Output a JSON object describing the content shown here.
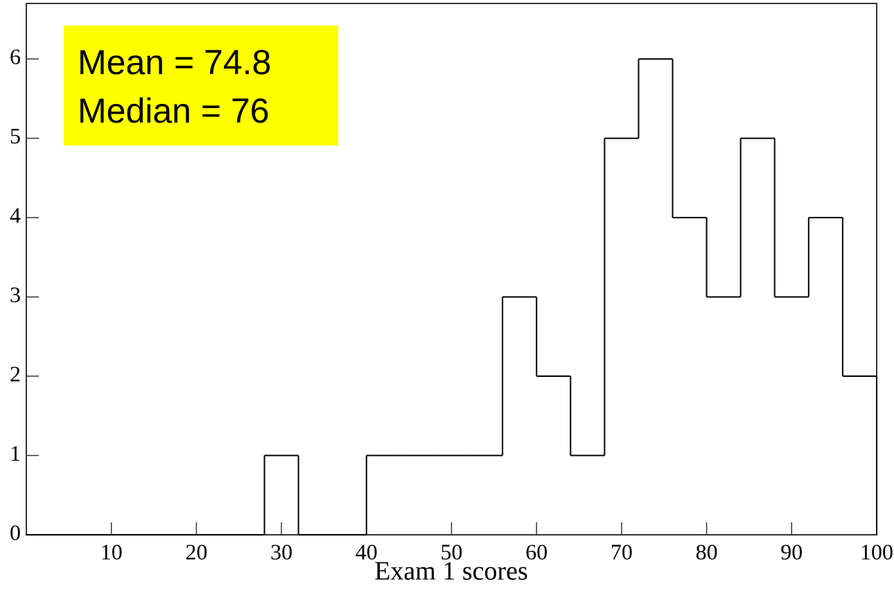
{
  "chart_data": {
    "type": "histogram",
    "bins": [
      0,
      4,
      8,
      12,
      16,
      20,
      24,
      28,
      32,
      36,
      40,
      44,
      48,
      52,
      56,
      60,
      64,
      68,
      72,
      76,
      80,
      84,
      88,
      92,
      96,
      100
    ],
    "values": [
      0,
      0,
      0,
      0,
      0,
      0,
      0,
      1,
      0,
      0,
      1,
      1,
      1,
      1,
      3,
      2,
      1,
      5,
      6,
      4,
      3,
      5,
      3,
      4,
      2
    ],
    "color": "#000000",
    "xlim": [
      0,
      100
    ],
    "xticks": [
      10,
      20,
      30,
      40,
      50,
      60,
      70,
      80,
      90,
      100
    ],
    "ylim": [
      0,
      6.7
    ],
    "yticks": [
      0,
      1,
      2,
      3,
      4,
      5,
      6
    ],
    "x_label": "Exam 1 scores",
    "annotations": [
      "Mean = 74.8",
      "Median = 76"
    ],
    "annotation_color": "#ffff00"
  }
}
